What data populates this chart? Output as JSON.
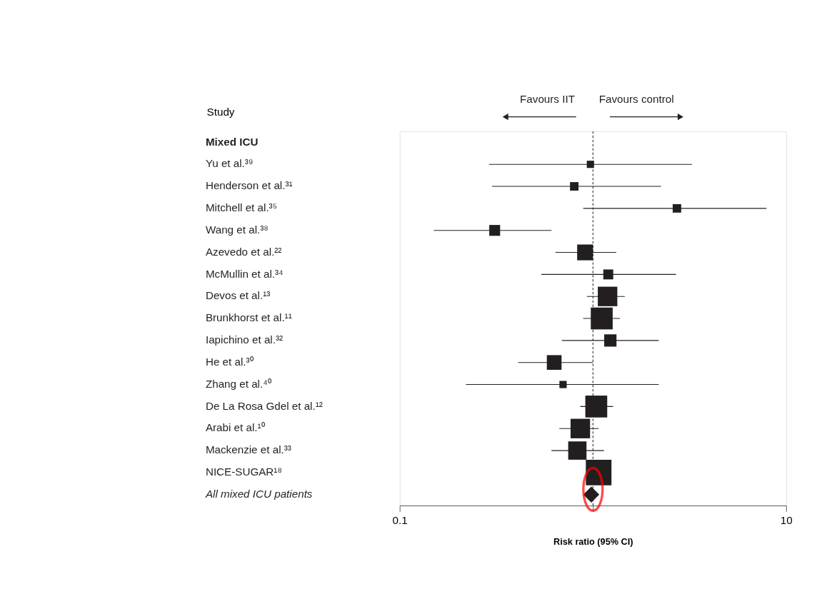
{
  "chart_data": {
    "type": "scatter",
    "orientation": "horizontal",
    "xlabel": "Risk ratio (95% CI)",
    "ylabel": "Study",
    "categories": [
      "Mixed ICU",
      "Yu et al.³⁹",
      "Henderson et al.³¹",
      "Mitchell et al.³⁵",
      "Wang et al.³⁸",
      "Azevedo et al.²²",
      "McMullin et al.³⁴",
      "Devos et al.¹³",
      "Brunkhorst et al.¹¹",
      "Iapichino et al.³²",
      "He et al.³⁰",
      "Zhang et al.⁴⁰",
      "De La Rosa Gdel et al.¹²",
      "Arabi et al.¹⁰",
      "Mackenzie et al.³³",
      "NICE-SUGAR¹⁸",
      "All mixed ICU patients"
    ],
    "xlim": [
      0.1,
      10
    ],
    "xticks": [
      0.1,
      {
        "value": 1,
        "label": null
      },
      10
    ],
    "log": "x",
    "grid": false,
    "legend": false,
    "ref_lines": [
      {
        "axis": "x",
        "value": 1,
        "line_style": "dashed",
        "color": "#333333"
      }
    ],
    "annotations": [
      "Favours IIT",
      "Favours control"
    ],
    "series": [
      {
        "type": "bubble",
        "marker": "square",
        "color": "#231f20",
        "values": [
          null,
          0.97,
          0.8,
          2.72,
          0.31,
          0.91,
          1.2,
          1.19,
          1.11,
          1.23,
          0.63,
          0.7,
          1.04,
          0.86,
          0.83,
          1.07,
          null
        ],
        "errors": [
          null,
          [
            0.29,
            3.25
          ],
          [
            0.3,
            2.25
          ],
          [
            0.89,
            7.9
          ],
          [
            0.15,
            0.61
          ],
          [
            0.64,
            1.32
          ],
          [
            0.54,
            2.69
          ],
          [
            0.93,
            1.46
          ],
          [
            0.89,
            1.38
          ],
          [
            0.69,
            2.19
          ],
          [
            0.41,
            1.0
          ],
          [
            0.22,
            2.19
          ],
          [
            0.86,
            1.27
          ],
          [
            0.67,
            1.07
          ],
          [
            0.61,
            1.14
          ],
          null,
          null
        ],
        "sizes": [
          null,
          0.08,
          0.11,
          0.11,
          0.18,
          0.38,
          0.15,
          0.58,
          0.73,
          0.23,
          0.33,
          0.08,
          0.73,
          0.58,
          0.51,
          1,
          null
        ]
      },
      {
        "marker": "diamond",
        "color": "#231f20",
        "values": [
          null,
          null,
          null,
          null,
          null,
          null,
          null,
          null,
          null,
          null,
          null,
          null,
          null,
          null,
          null,
          null,
          0.98
        ]
      }
    ]
  }
}
